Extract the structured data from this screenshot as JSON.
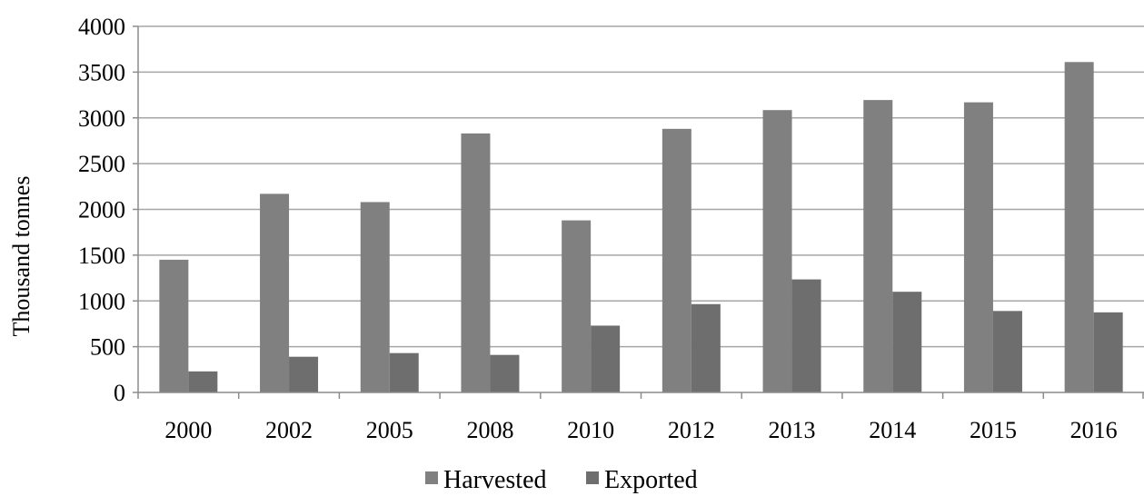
{
  "chart_data": {
    "type": "bar",
    "title": "",
    "xlabel": "",
    "ylabel": "Thousand tonnes",
    "categories": [
      "2000",
      "2002",
      "2005",
      "2008",
      "2010",
      "2012",
      "2013",
      "2014",
      "2015",
      "2016"
    ],
    "series": [
      {
        "name": "Harvested",
        "color": "#808080",
        "values": [
          1450,
          2170,
          2080,
          2830,
          1880,
          2880,
          3085,
          3195,
          3170,
          3610
        ]
      },
      {
        "name": "Exported",
        "color": "#6e6e6e",
        "values": [
          230,
          390,
          430,
          410,
          730,
          965,
          1235,
          1100,
          890,
          875
        ]
      }
    ],
    "ylim": [
      0,
      4000
    ],
    "yticks": [
      0,
      500,
      1000,
      1500,
      2000,
      2500,
      3000,
      3500,
      4000
    ],
    "grid": true,
    "legend": "bottom-center"
  }
}
